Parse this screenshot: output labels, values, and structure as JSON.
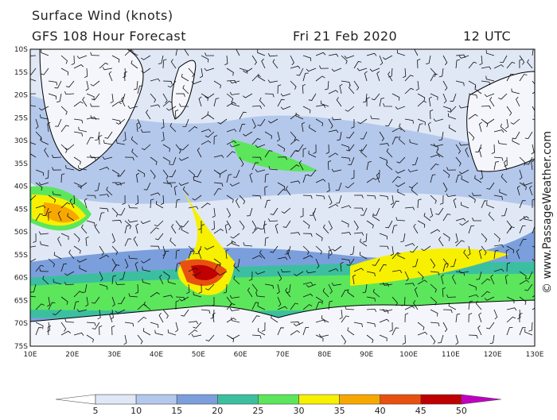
{
  "header": {
    "title": "Surface Wind (knots)",
    "model": "GFS 108 Hour Forecast",
    "date": "Fri 21 Feb 2020",
    "time": "12 UTC"
  },
  "map": {
    "lat_labels": [
      "10S",
      "15S",
      "20S",
      "25S",
      "30S",
      "35S",
      "40S",
      "45S",
      "50S",
      "55S",
      "60S",
      "65S",
      "70S",
      "75S"
    ],
    "lon_labels": [
      "10E",
      "20E",
      "30E",
      "40E",
      "50E",
      "60E",
      "70E",
      "80E",
      "90E",
      "100E",
      "110E",
      "120E",
      "130E"
    ]
  },
  "colorbar": {
    "ticks": [
      5,
      10,
      15,
      20,
      25,
      30,
      35,
      40,
      45,
      50
    ],
    "colors": [
      "#ffffff",
      "#e0e8f6",
      "#b4c8ec",
      "#7b9fdc",
      "#3cbfa0",
      "#5ce65c",
      "#f7f000",
      "#f7a800",
      "#e85010",
      "#c00000",
      "#c000c0"
    ]
  },
  "credit": "© www.PassageWeather.com"
}
